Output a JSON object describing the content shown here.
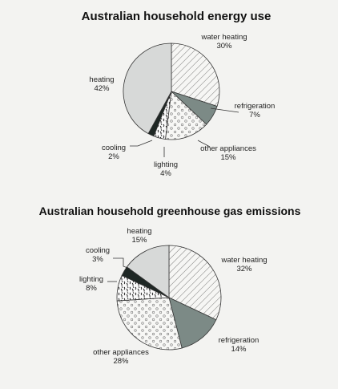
{
  "chart_data": [
    {
      "type": "pie",
      "title": "Australian household energy use",
      "slices": [
        {
          "label": "water heating",
          "value": 30,
          "value_label": "30%",
          "fill": "hatch"
        },
        {
          "label": "refrigeration",
          "value": 7,
          "value_label": "7%",
          "fill": "#7c8a86"
        },
        {
          "label": "other appliances",
          "value": 15,
          "value_label": "15%",
          "fill": "circles"
        },
        {
          "label": "lighting",
          "value": 4,
          "value_label": "4%",
          "fill": "squiggle"
        },
        {
          "label": "cooling",
          "value": 2,
          "value_label": "2%",
          "fill": "#1e2724"
        },
        {
          "label": "heating",
          "value": 42,
          "value_label": "42%",
          "fill": "#d7d9d8"
        }
      ]
    },
    {
      "type": "pie",
      "title": "Australian household greenhouse gas emissions",
      "slices": [
        {
          "label": "water heating",
          "value": 32,
          "value_label": "32%",
          "fill": "hatch"
        },
        {
          "label": "refrigeration",
          "value": 14,
          "value_label": "14%",
          "fill": "#7c8a86"
        },
        {
          "label": "other appliances",
          "value": 28,
          "value_label": "28%",
          "fill": "circles"
        },
        {
          "label": "lighting",
          "value": 8,
          "value_label": "8%",
          "fill": "squiggle"
        },
        {
          "label": "cooling",
          "value": 3,
          "value_label": "3%",
          "fill": "#1e2724"
        },
        {
          "label": "heating",
          "value": 15,
          "value_label": "15%",
          "fill": "#d7d9d8"
        }
      ]
    }
  ],
  "colors": {
    "background": "#f3f3f1",
    "outline": "#333333",
    "hatch_line": "#555555",
    "dot_line": "#777777"
  }
}
